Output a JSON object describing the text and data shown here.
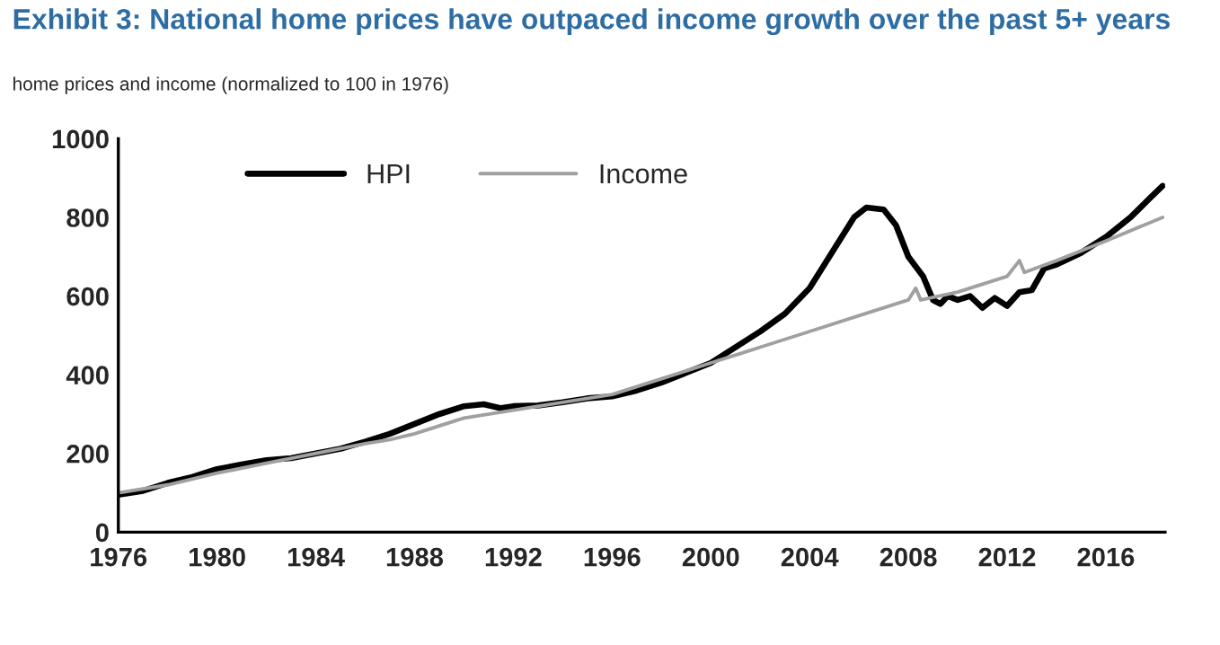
{
  "chart_data": {
    "type": "line",
    "title": "Exhibit 3: National home prices have outpaced income growth over the past 5+ years",
    "subtitle": "home prices and income (normalized to 100 in 1976)",
    "xlim": [
      1976,
      2018.4
    ],
    "xticks": [
      1976,
      1980,
      1984,
      1988,
      1992,
      1996,
      2000,
      2004,
      2008,
      2012,
      2016
    ],
    "ylim": [
      0,
      1000
    ],
    "yticks": [
      0,
      200,
      400,
      600,
      800,
      1000
    ],
    "grid": false,
    "legend": "top left",
    "marker": "none",
    "line_style": "solid",
    "series": [
      {
        "name": "HPI",
        "color": "#000000",
        "x": [
          1976,
          1977,
          1978,
          1979,
          1980,
          1981,
          1982,
          1983,
          1984,
          1985,
          1986,
          1987,
          1988,
          1989,
          1990,
          1990.8,
          1991.5,
          1992,
          1993,
          1994,
          1995,
          1996,
          1997,
          1998,
          1999,
          2000,
          2001,
          2002,
          2003,
          2004,
          2005,
          2005.8,
          2006.3,
          2007,
          2007.5,
          2008,
          2008.6,
          2009,
          2009.3,
          2009.6,
          2010,
          2010.5,
          2011,
          2011.5,
          2012,
          2012.5,
          2013,
          2013.5,
          2014,
          2015,
          2016,
          2017,
          2017.8,
          2018.3
        ],
        "values": [
          95,
          105,
          125,
          140,
          160,
          172,
          183,
          188,
          200,
          212,
          230,
          250,
          275,
          300,
          320,
          325,
          315,
          320,
          322,
          330,
          340,
          345,
          360,
          380,
          405,
          430,
          470,
          510,
          555,
          620,
          720,
          800,
          825,
          820,
          780,
          700,
          650,
          590,
          580,
          600,
          590,
          600,
          570,
          595,
          575,
          610,
          615,
          670,
          680,
          710,
          750,
          800,
          850,
          880
        ]
      },
      {
        "name": "Income",
        "color": "#a0a0a0",
        "x": [
          1976,
          1978,
          1980,
          1982,
          1984,
          1986,
          1987,
          1988,
          1990,
          1992,
          1994,
          1996,
          1998,
          2000,
          2001.5,
          2002,
          2004,
          2006,
          2008,
          2008.3,
          2008.5,
          2010,
          2012,
          2012.5,
          2012.7,
          2014,
          2016,
          2018.3
        ],
        "values": [
          100,
          120,
          150,
          175,
          200,
          225,
          235,
          250,
          290,
          310,
          330,
          350,
          390,
          430,
          460,
          470,
          510,
          550,
          590,
          620,
          590,
          610,
          650,
          690,
          660,
          690,
          740,
          800
        ]
      }
    ]
  }
}
